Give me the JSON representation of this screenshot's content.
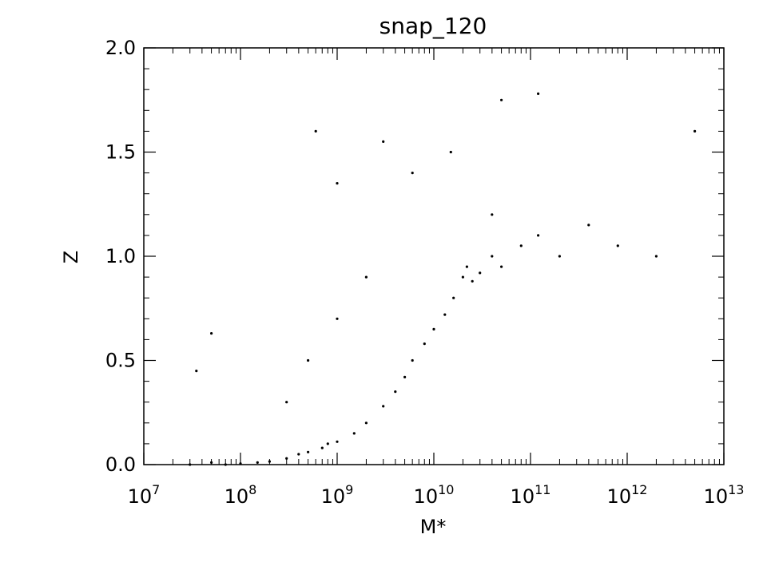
{
  "chart_data": {
    "type": "scatter",
    "title": "snap_120",
    "xlabel": "M*",
    "ylabel": "Z",
    "xscale": "log",
    "xlim": [
      10000000,
      10000000000000
    ],
    "ylim": [
      0,
      2.0
    ],
    "x_ticks": [
      {
        "value": 10000000,
        "base": "10",
        "exp": "7"
      },
      {
        "value": 100000000,
        "base": "10",
        "exp": "8"
      },
      {
        "value": 1000000000,
        "base": "10",
        "exp": "9"
      },
      {
        "value": 10000000000,
        "base": "10",
        "exp": "10"
      },
      {
        "value": 100000000000,
        "base": "10",
        "exp": "11"
      },
      {
        "value": 1000000000000,
        "base": "10",
        "exp": "12"
      },
      {
        "value": 10000000000000,
        "base": "10",
        "exp": "13"
      }
    ],
    "y_ticks": [
      {
        "value": 0.0,
        "label": "0.0"
      },
      {
        "value": 0.5,
        "label": "0.5"
      },
      {
        "value": 1.0,
        "label": "1.0"
      },
      {
        "value": 1.5,
        "label": "1.5"
      },
      {
        "value": 2.0,
        "label": "2.0"
      }
    ],
    "grid": false,
    "legend": "none",
    "marker_color": "#000000",
    "series": [
      {
        "points": [
          [
            30000000.0,
            0.0
          ],
          [
            50000000.0,
            0.01
          ],
          [
            70000000.0,
            0.0
          ],
          [
            100000000.0,
            0.005
          ],
          [
            150000000.0,
            0.01
          ],
          [
            200000000.0,
            0.015
          ],
          [
            300000000.0,
            0.03
          ],
          [
            400000000.0,
            0.05
          ],
          [
            500000000.0,
            0.06
          ],
          [
            700000000.0,
            0.08
          ],
          [
            800000000.0,
            0.1
          ],
          [
            1000000000.0,
            0.11
          ],
          [
            1500000000.0,
            0.15
          ],
          [
            2000000000.0,
            0.2
          ],
          [
            3000000000.0,
            0.28
          ],
          [
            4000000000.0,
            0.35
          ],
          [
            5000000000.0,
            0.42
          ],
          [
            6000000000.0,
            0.5
          ],
          [
            8000000000.0,
            0.58
          ],
          [
            10000000000.0,
            0.65
          ],
          [
            13000000000.0,
            0.72
          ],
          [
            16000000000.0,
            0.8
          ],
          [
            20000000000.0,
            0.9
          ],
          [
            22000000000.0,
            0.95
          ],
          [
            25000000000.0,
            0.88
          ],
          [
            30000000000.0,
            0.92
          ],
          [
            40000000000.0,
            1.0
          ],
          [
            50000000000.0,
            0.95
          ],
          [
            80000000000.0,
            1.05
          ],
          [
            120000000000.0,
            1.1
          ],
          [
            200000000000.0,
            1.0
          ],
          [
            400000000000.0,
            1.15
          ],
          [
            800000000000.0,
            1.05
          ],
          [
            2000000000000.0,
            1.0
          ],
          [
            5000000000000.0,
            1.6
          ],
          [
            600000000.0,
            1.6
          ],
          [
            1000000000.0,
            1.35
          ],
          [
            3000000000.0,
            1.55
          ],
          [
            6000000000.0,
            1.4
          ],
          [
            15000000000.0,
            1.5
          ],
          [
            50000000000.0,
            1.75
          ],
          [
            120000000000.0,
            1.78
          ],
          [
            40000000000.0,
            1.2
          ],
          [
            2000000000.0,
            0.9
          ],
          [
            1000000000.0,
            0.7
          ],
          [
            500000000.0,
            0.5
          ],
          [
            300000000.0,
            0.3
          ],
          [
            50000000.0,
            0.63
          ],
          [
            35000000.0,
            0.45
          ]
        ]
      }
    ]
  }
}
